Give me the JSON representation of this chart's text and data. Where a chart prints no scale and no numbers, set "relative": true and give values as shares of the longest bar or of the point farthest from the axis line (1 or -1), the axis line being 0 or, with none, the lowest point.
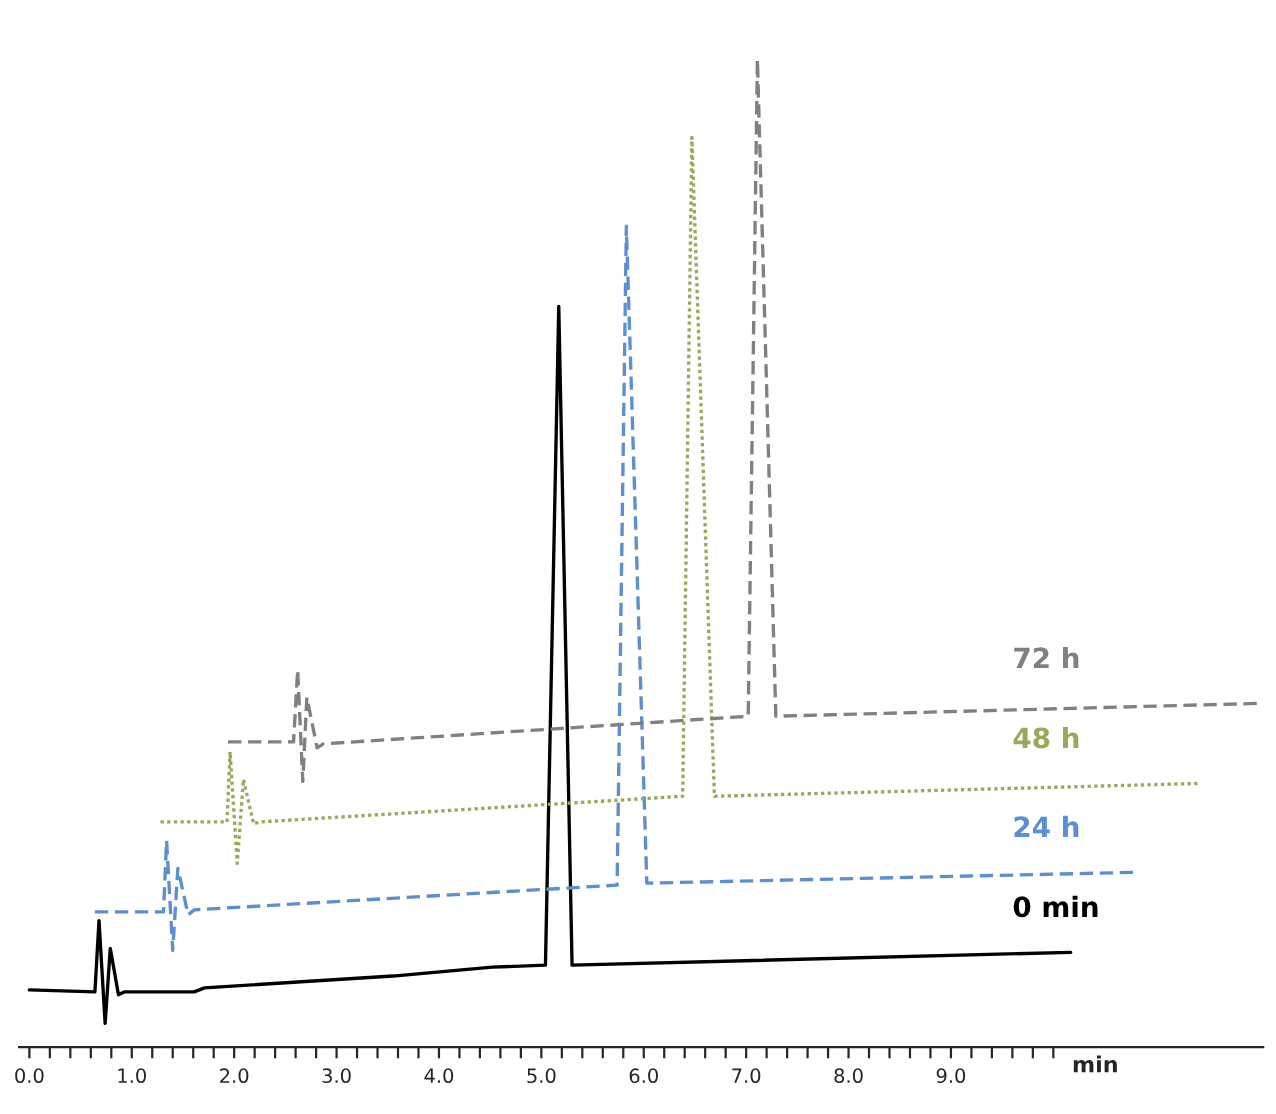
{
  "chart_data": {
    "type": "line",
    "relative": true,
    "xlabel": "min",
    "legend": false,
    "grid": false,
    "xlim": [
      -0.1,
      12.05
    ],
    "xticks": [
      {
        "value": 0,
        "label": "0.0"
      },
      {
        "value": 0.2,
        "label": null
      },
      {
        "value": 0.4,
        "label": null
      },
      {
        "value": 0.6,
        "label": null
      },
      {
        "value": 0.8,
        "label": null
      },
      {
        "value": 1,
        "label": "1.0"
      },
      {
        "value": 1.2,
        "label": null
      },
      {
        "value": 1.4,
        "label": null
      },
      {
        "value": 1.6,
        "label": null
      },
      {
        "value": 1.8,
        "label": null
      },
      {
        "value": 2,
        "label": "2.0"
      },
      {
        "value": 2.2,
        "label": null
      },
      {
        "value": 2.4,
        "label": null
      },
      {
        "value": 2.6,
        "label": null
      },
      {
        "value": 2.8,
        "label": null
      },
      {
        "value": 3,
        "label": "3.0"
      },
      {
        "value": 3.2,
        "label": null
      },
      {
        "value": 3.4,
        "label": null
      },
      {
        "value": 3.6,
        "label": null
      },
      {
        "value": 3.8,
        "label": null
      },
      {
        "value": 4,
        "label": "4.0"
      },
      {
        "value": 4.2,
        "label": null
      },
      {
        "value": 4.4,
        "label": null
      },
      {
        "value": 4.6,
        "label": null
      },
      {
        "value": 4.8,
        "label": null
      },
      {
        "value": 5,
        "label": "5.0"
      },
      {
        "value": 5.2,
        "label": null
      },
      {
        "value": 5.4,
        "label": null
      },
      {
        "value": 5.6,
        "label": null
      },
      {
        "value": 5.8,
        "label": null
      },
      {
        "value": 6,
        "label": "6.0"
      },
      {
        "value": 6.2,
        "label": null
      },
      {
        "value": 6.4,
        "label": null
      },
      {
        "value": 6.6,
        "label": null
      },
      {
        "value": 6.8,
        "label": null
      },
      {
        "value": 7,
        "label": "7.0"
      },
      {
        "value": 7.2,
        "label": null
      },
      {
        "value": 7.4,
        "label": null
      },
      {
        "value": 7.6,
        "label": null
      },
      {
        "value": 7.8,
        "label": null
      },
      {
        "value": 8,
        "label": "8.0"
      },
      {
        "value": 8.2,
        "label": null
      },
      {
        "value": 8.4,
        "label": null
      },
      {
        "value": 8.6,
        "label": null
      },
      {
        "value": 8.8,
        "label": null
      },
      {
        "value": 9,
        "label": "9.0"
      },
      {
        "value": 9.2,
        "label": null
      },
      {
        "value": 9.4,
        "label": null
      },
      {
        "value": 9.6,
        "label": null
      },
      {
        "value": 9.8,
        "label": null
      },
      {
        "value": 10,
        "label": null
      }
    ],
    "series": [
      {
        "name": "0 min",
        "color": "#000000",
        "line_style": "solid",
        "x": [
          0,
          0.64,
          0.68,
          0.74,
          0.79,
          0.87,
          0.93,
          1.61,
          1.71,
          3.55,
          4.52,
          5.04,
          5.17,
          5.3,
          10.17
        ],
        "values": [
          0.058,
          0.056,
          0.128,
          0.024,
          0.1,
          0.053,
          0.056,
          0.056,
          0.06,
          0.072,
          0.081,
          0.083,
          0.75,
          0.083,
          0.096
        ]
      },
      {
        "name": "24 h",
        "color": "#5b8fd0",
        "line_style": "dashed",
        "x": [
          0.64,
          1.31,
          1.34,
          1.4,
          1.45,
          1.55,
          1.61,
          5.74,
          5.83,
          6.03,
          10.81
        ],
        "values": [
          0.137,
          0.137,
          0.209,
          0.098,
          0.181,
          0.134,
          0.139,
          0.164,
          0.831,
          0.166,
          0.177
        ]
      },
      {
        "name": "48 h",
        "color": "#9aa85a",
        "line_style": "dotted",
        "x": [
          1.28,
          1.93,
          1.96,
          2.03,
          2.09,
          2.19,
          2.25,
          6.38,
          6.47,
          6.69,
          11.43
        ],
        "values": [
          0.228,
          0.228,
          0.299,
          0.186,
          0.271,
          0.226,
          0.228,
          0.254,
          0.921,
          0.254,
          0.267
        ]
      },
      {
        "name": "72 h",
        "color": "#808080",
        "line_style": "dashed",
        "x": [
          1.94,
          2.58,
          2.62,
          2.67,
          2.71,
          2.81,
          2.87,
          7.02,
          7.11,
          7.29,
          12.0
        ],
        "values": [
          0.309,
          0.309,
          0.382,
          0.269,
          0.354,
          0.303,
          0.307,
          0.335,
          1.0,
          0.335,
          0.348
        ]
      }
    ]
  }
}
